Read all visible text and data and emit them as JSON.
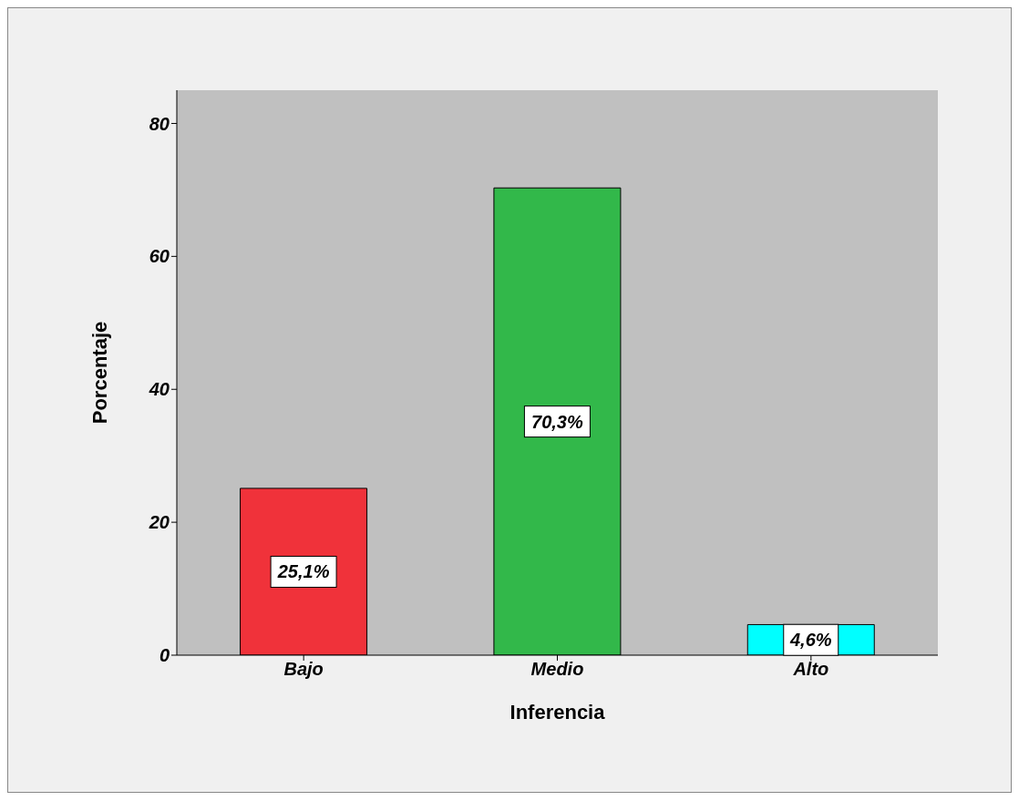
{
  "chart_data": {
    "type": "bar",
    "xlabel": "Inferencia",
    "ylabel": "Porcentaje",
    "categories": [
      "Bajo",
      "Medio",
      "Alto"
    ],
    "values": [
      25.1,
      70.3,
      4.6
    ],
    "colors": [
      "#f0323a",
      "#32b84a",
      "#00ffff"
    ],
    "value_labels": [
      "25,1%",
      "70,3%",
      "4,6%"
    ],
    "ylim": [
      0,
      85
    ],
    "yticks": [
      0,
      20,
      40,
      60,
      80
    ],
    "grid": false
  }
}
